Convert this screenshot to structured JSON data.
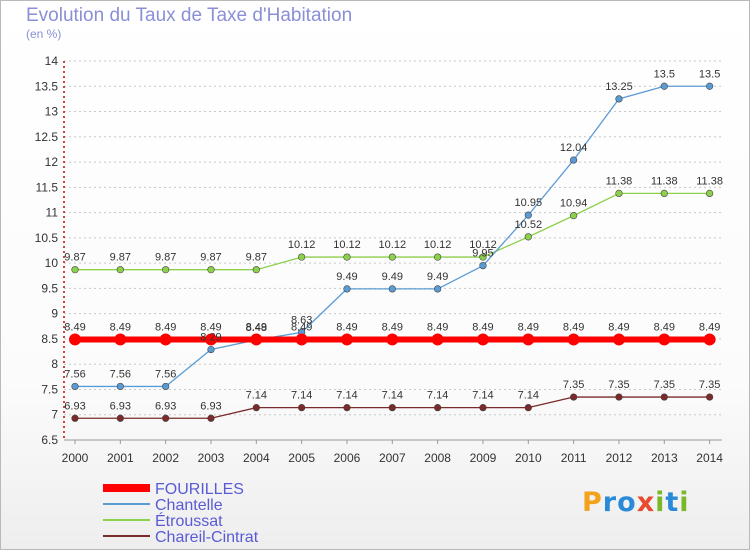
{
  "title": "Evolution du Taux de Taxe d'Habitation",
  "subtitle": "(en %)",
  "logo": {
    "letters": [
      "P",
      "r",
      "o",
      "x",
      "i",
      "t",
      "i"
    ],
    "colors": [
      "#f3a21b",
      "#2a8ad8",
      "#2a8ad8",
      "#e84a2e",
      "#7ab82a",
      "#2a8ad8",
      "#7ab82a"
    ]
  },
  "chart_data": {
    "type": "line",
    "title": "Evolution du Taux de Taxe d'Habitation",
    "ylabel": "(en %)",
    "xlabel": "",
    "x": [
      "2000",
      "2001",
      "2002",
      "2003",
      "2004",
      "2005",
      "2006",
      "2007",
      "2008",
      "2009",
      "2010",
      "2011",
      "2012",
      "2013",
      "2014"
    ],
    "ylim": [
      6.5,
      14
    ],
    "yticks": [
      "6.5",
      "7",
      "7.5",
      "8",
      "8.5",
      "9",
      "9.5",
      "10",
      "10.5",
      "11",
      "11.5",
      "12",
      "12.5",
      "13",
      "13.5",
      "14"
    ],
    "grid": "horizontal",
    "legend_position": "bottom-left",
    "series": [
      {
        "name": "FOURILLES",
        "color": "#ff0000",
        "values": [
          8.49,
          8.49,
          8.49,
          8.49,
          8.49,
          8.49,
          8.49,
          8.49,
          8.49,
          8.49,
          8.49,
          8.49,
          8.49,
          8.49,
          8.49
        ],
        "labels": [
          "8.49",
          "8.49",
          "8.49",
          "8.49",
          "8.49",
          "8.49",
          "8.49",
          "8.49",
          "8.49",
          "8.49",
          "8.49",
          "8.49",
          "8.49",
          "8.49",
          "8.49"
        ]
      },
      {
        "name": "Chantelle",
        "color": "#5b9bd5",
        "values": [
          7.56,
          7.56,
          7.56,
          8.29,
          8.48,
          8.63,
          9.49,
          9.49,
          9.49,
          9.95,
          10.95,
          12.04,
          13.25,
          13.5,
          13.5
        ],
        "labels": [
          "7.56",
          "7.56",
          "7.56",
          "8.29",
          "8.48",
          "8.63",
          "9.49",
          "9.49",
          "9.49",
          "9.95",
          "10.95",
          "12.04",
          "13.25",
          "13.5",
          "13.5"
        ]
      },
      {
        "name": "Étroussat",
        "color": "#8cd04b",
        "values": [
          9.87,
          9.87,
          9.87,
          9.87,
          9.87,
          10.12,
          10.12,
          10.12,
          10.12,
          10.12,
          10.52,
          10.94,
          11.38,
          11.38,
          11.38
        ],
        "labels": [
          "9.87",
          "9.87",
          "9.87",
          "9.87",
          "9.87",
          "10.12",
          "10.12",
          "10.12",
          "10.12",
          "10.12",
          "10.52",
          "10.94",
          "11.38",
          "11.38",
          "11.38"
        ]
      },
      {
        "name": "Chareil-Cintrat",
        "color": "#7a2a2a",
        "values": [
          6.93,
          6.93,
          6.93,
          6.93,
          7.14,
          7.14,
          7.14,
          7.14,
          7.14,
          7.14,
          7.14,
          7.35,
          7.35,
          7.35,
          7.35
        ],
        "labels": [
          "6.93",
          "6.93",
          "6.93",
          "6.93",
          "7.14",
          "7.14",
          "7.14",
          "7.14",
          "7.14",
          "7.14",
          "7.14",
          "7.35",
          "7.35",
          "7.35",
          "7.35"
        ]
      }
    ]
  }
}
